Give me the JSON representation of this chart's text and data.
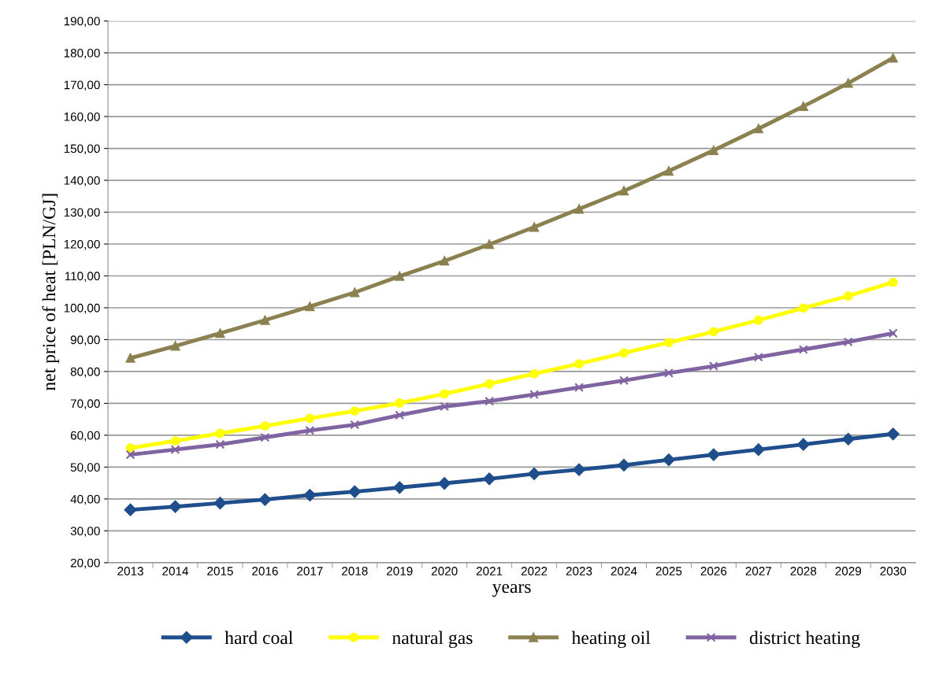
{
  "chart_data": {
    "type": "line",
    "xlabel": "years",
    "ylabel": "net price of heat [PLN/GJ]",
    "categories": [
      "2013",
      "2014",
      "2015",
      "2016",
      "2017",
      "2018",
      "2019",
      "2020",
      "2021",
      "2022",
      "2023",
      "2024",
      "2025",
      "2026",
      "2027",
      "2028",
      "2029",
      "2030"
    ],
    "series": [
      {
        "name": "hard coal",
        "color": "#1f4e8c",
        "marker": "diamond",
        "values": [
          36.6,
          37.6,
          38.7,
          39.8,
          41.2,
          42.3,
          43.6,
          44.9,
          46.3,
          47.9,
          49.2,
          50.6,
          52.3,
          53.9,
          55.5,
          57.1,
          58.8,
          60.4
        ]
      },
      {
        "name": "natural gas",
        "color": "#ffff00",
        "marker": "circle",
        "values": [
          56.0,
          58.2,
          60.6,
          62.9,
          65.3,
          67.6,
          70.1,
          73.0,
          76.1,
          79.3,
          82.4,
          85.8,
          89.1,
          92.5,
          96.1,
          99.9,
          103.7,
          108.0
        ]
      },
      {
        "name": "heating oil",
        "color": "#8b8050",
        "marker": "triangle",
        "values": [
          84.2,
          88.0,
          92.0,
          96.1,
          100.4,
          104.8,
          109.9,
          114.7,
          119.9,
          125.3,
          131.0,
          136.7,
          142.9,
          149.4,
          156.2,
          163.2,
          170.5,
          178.4
        ]
      },
      {
        "name": "district heating",
        "color": "#8064a2",
        "marker": "cross",
        "values": [
          53.9,
          55.5,
          57.1,
          59.3,
          61.5,
          63.3,
          66.3,
          69.0,
          70.7,
          72.8,
          75.0,
          77.2,
          79.5,
          81.7,
          84.5,
          86.9,
          89.3,
          92.0
        ]
      }
    ],
    "ylim": [
      20,
      190
    ],
    "yticks": [
      {
        "value": 20,
        "label": "20,00"
      },
      {
        "value": 30,
        "label": "30,00"
      },
      {
        "value": 40,
        "label": "40,00"
      },
      {
        "value": 50,
        "label": "50,00"
      },
      {
        "value": 60,
        "label": "60,00"
      },
      {
        "value": 70,
        "label": "70,00"
      },
      {
        "value": 80,
        "label": "80,00"
      },
      {
        "value": 90,
        "label": "90,00"
      },
      {
        "value": 100,
        "label": "100,00"
      },
      {
        "value": 110,
        "label": "110,00"
      },
      {
        "value": 120,
        "label": "120,00"
      },
      {
        "value": 130,
        "label": "130,00"
      },
      {
        "value": 140,
        "label": "140,00"
      },
      {
        "value": 150,
        "label": "150,00"
      },
      {
        "value": 160,
        "label": "160,00"
      },
      {
        "value": 170,
        "label": "170,00"
      },
      {
        "value": 180,
        "label": "180,00"
      },
      {
        "value": 190,
        "label": "190,00"
      }
    ],
    "grid": "y",
    "legend": "bottom",
    "line_style": "solid"
  }
}
